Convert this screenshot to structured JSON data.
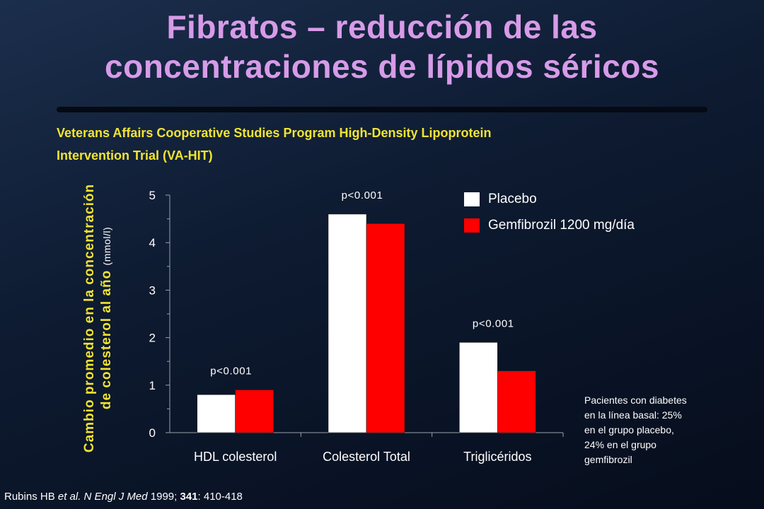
{
  "slide": {
    "title_line1": "Fibratos – reducción de las",
    "title_line2": "concentraciones de lípidos séricos",
    "subtitle_line1": "Veterans Affairs Cooperative Studies Program High-Density Lipoprotein",
    "subtitle_line2": "Intervention Trial (VA-HIT)",
    "note": "Pacientes con diabetes\nen la línea basal: 25%\nen el grupo placebo,\n24% en el grupo\ngemfibrozil",
    "source_author": "Rubins HB ",
    "source_etal": "et al. N Engl J Med",
    "source_year": " 1999; ",
    "source_vol": "341",
    "source_pages": ": 410-418",
    "colors": {
      "title": "#d79be8",
      "subtitle": "#f2e431",
      "placebo": "#ffffff",
      "gemfibrozil": "#ff0000"
    }
  },
  "chart_data": {
    "type": "bar",
    "categories": [
      "HDL colesterol",
      "Colesterol Total",
      "Triglicéridos"
    ],
    "series": [
      {
        "name": "Placebo",
        "values": [
          0.8,
          4.6,
          1.9
        ],
        "color": "#ffffff"
      },
      {
        "name": "Gemfibrozil 1200 mg/día",
        "values": [
          0.9,
          4.4,
          1.3
        ],
        "color": "#ff0000"
      }
    ],
    "annotations": [
      "p<0.001",
      "p<0.001",
      "p<0.001"
    ],
    "ylabel_line1": "Cambio promedio en la concentración",
    "ylabel_line2": "de colesterol al año",
    "ylabel_unit": "(mmol/l)",
    "ylim": [
      0,
      5
    ],
    "yticks": [
      "0",
      "1",
      "2",
      "3",
      "4",
      "5"
    ],
    "grid": false,
    "legend_position": "top-right"
  }
}
